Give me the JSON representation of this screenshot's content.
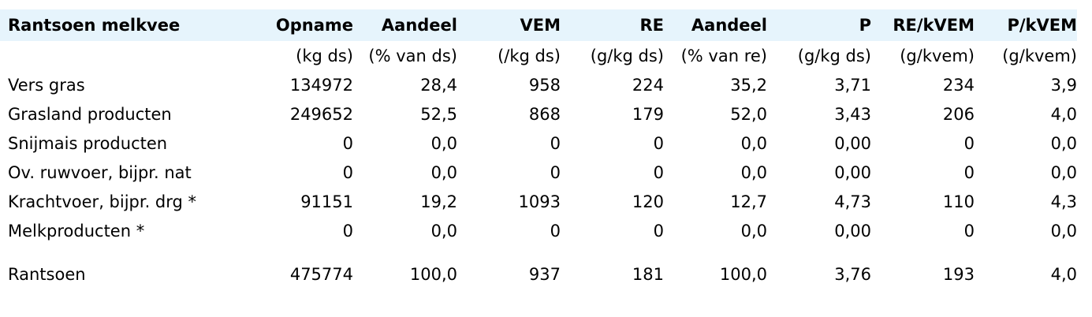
{
  "table": {
    "header": [
      "Rantsoen melkvee",
      "Opname",
      "Aandeel",
      "VEM",
      "RE",
      "Aandeel",
      "P",
      "RE/kVEM",
      "P/kVEM"
    ],
    "units": [
      "(kg ds)",
      "(% van ds)",
      "(/kg ds)",
      "(g/kg ds)",
      "(% van re)",
      "(g/kg ds)",
      "(g/kvem)",
      "(g/kvem)"
    ],
    "rows": [
      [
        "Vers gras",
        "134972",
        "28,4",
        "958",
        "224",
        "35,2",
        "3,71",
        "234",
        "3,9"
      ],
      [
        "Grasland producten",
        "249652",
        "52,5",
        "868",
        "179",
        "52,0",
        "3,43",
        "206",
        "4,0"
      ],
      [
        "Snijmais producten",
        "0",
        "0,0",
        "0",
        "0",
        "0,0",
        "0,00",
        "0",
        "0,0"
      ],
      [
        "Ov. ruwvoer, bijpr. nat",
        "0",
        "0,0",
        "0",
        "0",
        "0,0",
        "0,00",
        "0",
        "0,0"
      ],
      [
        "Krachtvoer, bijpr. drg *",
        "91151",
        "19,2",
        "1093",
        "120",
        "12,7",
        "4,73",
        "110",
        "4,3"
      ],
      [
        "Melkproducten *",
        "0",
        "0,0",
        "0",
        "0",
        "0,0",
        "0,00",
        "0",
        "0,0"
      ]
    ],
    "total": [
      "Rantsoen",
      "475774",
      "100,0",
      "937",
      "181",
      "100,0",
      "3,76",
      "193",
      "4,0"
    ]
  }
}
